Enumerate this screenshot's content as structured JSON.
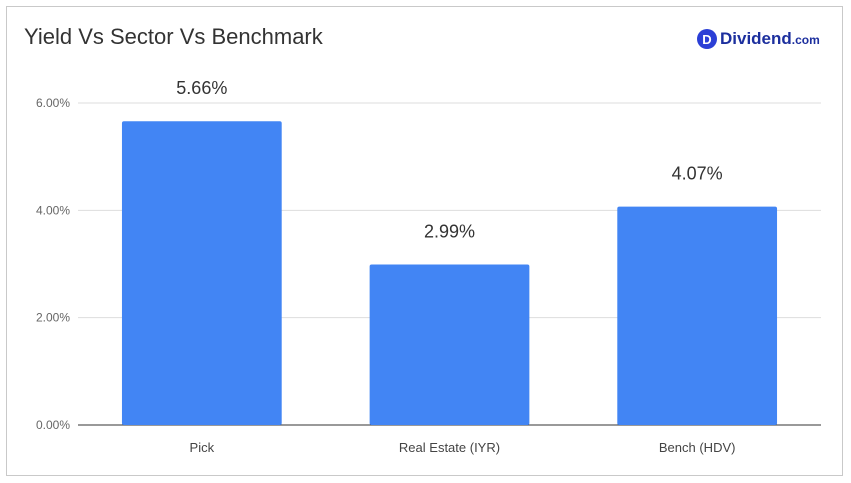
{
  "header": {
    "title": "Yield Vs Sector Vs Benchmark",
    "logo_mark": "D",
    "logo_word": "Dividend",
    "logo_suffix": ".com"
  },
  "colors": {
    "bar": "#4285f4",
    "grid": "#dddddd",
    "axis": "#333333",
    "logo": "#2b3fd6"
  },
  "chart_data": {
    "type": "bar",
    "title": "Yield Vs Sector Vs Benchmark",
    "categories": [
      "Pick",
      "Real Estate (IYR)",
      "Bench (HDV)"
    ],
    "values": [
      5.66,
      2.99,
      4.07
    ],
    "data_labels": [
      "5.66%",
      "2.99%",
      "4.07%"
    ],
    "ylim": [
      0,
      6
    ],
    "yticks": [
      0,
      2,
      4,
      6
    ],
    "ytick_labels": [
      "0.00%",
      "2.00%",
      "4.00%",
      "6.00%"
    ],
    "xlabel": "",
    "ylabel": "",
    "grid": true,
    "legend": "none"
  }
}
